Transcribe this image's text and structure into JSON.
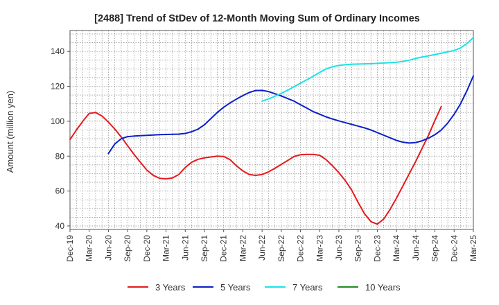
{
  "chart_data": {
    "type": "line",
    "title": "[2488]  Trend of StDev of 12-Month Moving Sum of Ordinary Incomes",
    "xlabel": "",
    "ylabel": "Amount (million yen)",
    "ylim": [
      38,
      152
    ],
    "yticks": [
      40,
      60,
      80,
      100,
      120,
      140
    ],
    "grid": true,
    "legend_position": "bottom",
    "x_start": "2019-12",
    "x_end": "2025-03",
    "tick_labels": [
      "Dec-19",
      "Mar-20",
      "Jun-20",
      "Sep-20",
      "Dec-20",
      "Mar-21",
      "Jun-21",
      "Sep-21",
      "Dec-21",
      "Mar-22",
      "Jun-22",
      "Sep-22",
      "Dec-22",
      "Mar-23",
      "Jun-23",
      "Sep-23",
      "Dec-23",
      "Mar-24",
      "Jun-24",
      "Sep-24",
      "Dec-24",
      "Mar-25"
    ],
    "series": [
      {
        "name": "3 Years",
        "color": "#e31a1c",
        "start_month_index": 0,
        "values": [
          89.5,
          95,
          100,
          104.5,
          105,
          103,
          99.5,
          95.5,
          91,
          86,
          81,
          76.5,
          72,
          69,
          67.3,
          67,
          67.5,
          69.5,
          73.5,
          76.5,
          78.2,
          79,
          79.5,
          80,
          79.8,
          78,
          74.5,
          71.5,
          69.5,
          69,
          69.5,
          71,
          73,
          75.3,
          77.5,
          79.8,
          80.8,
          81,
          81,
          80.5,
          78,
          74.5,
          70.5,
          66,
          60.5,
          53.5,
          47,
          42.5,
          41,
          44,
          49.5,
          56,
          63,
          70,
          77,
          84.5,
          92,
          100.5,
          108.5
        ]
      },
      {
        "name": "5 Years",
        "color": "#0a1fc8",
        "start_month_index": 6,
        "values": [
          81.5,
          87,
          90,
          91.2,
          91.5,
          91.7,
          91.9,
          92.1,
          92.3,
          92.4,
          92.5,
          92.6,
          93,
          94,
          95.5,
          98,
          101.5,
          105,
          108,
          110.5,
          112.7,
          114.7,
          116.5,
          117.6,
          117.7,
          117,
          115.8,
          114.5,
          113,
          111.5,
          109.5,
          107.5,
          105.5,
          104,
          102.5,
          101.3,
          100.2,
          99.2,
          98.2,
          97.2,
          96.2,
          95,
          93.5,
          92,
          90.5,
          89,
          88,
          87.5,
          87.8,
          88.8,
          90.3,
          92.3,
          95,
          99,
          104,
          110,
          117.5,
          126
        ]
      },
      {
        "name": "7 Years",
        "color": "#19e3e6",
        "start_month_index": 30,
        "values": [
          111.5,
          112.8,
          114.3,
          116,
          117.8,
          119.8,
          121.8,
          123.8,
          125.8,
          128,
          130,
          131.2,
          132,
          132.4,
          132.7,
          132.8,
          132.9,
          133,
          133.2,
          133.4,
          133.6,
          133.8,
          134.3,
          135,
          136,
          136.8,
          137.5,
          138.2,
          139,
          139.8,
          140.5,
          142,
          144.5,
          148
        ]
      },
      {
        "name": "10 Years",
        "color": "#228b22",
        "start_month_index": 0,
        "values": []
      }
    ]
  }
}
